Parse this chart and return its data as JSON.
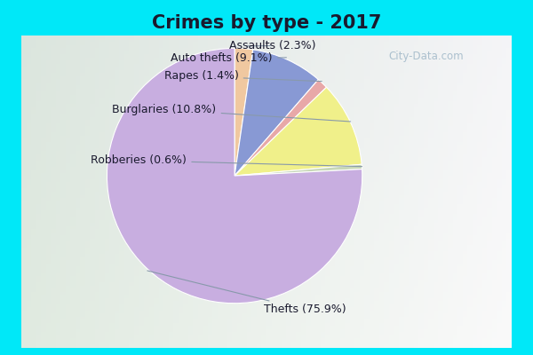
{
  "title": "Crimes by type - 2017",
  "wedge_labels": [
    "Assaults",
    "Auto thefts",
    "Rapes",
    "Burglaries",
    "Robberies",
    "Thefts"
  ],
  "wedge_values": [
    2.3,
    9.1,
    1.4,
    10.8,
    0.6,
    75.9
  ],
  "wedge_colors": [
    "#f0c8a0",
    "#8899d4",
    "#e8a8a8",
    "#f0f08a",
    "#c8d8b8",
    "#c8aee0"
  ],
  "background_cyan": "#00e8f8",
  "background_main_top": "#e8f0f0",
  "background_main_bottom": "#d8edd8",
  "title_color": "#1a1a2e",
  "title_fontsize": 15,
  "label_fontsize": 9,
  "watermark_color": "#a0b8c8",
  "startangle": 90
}
